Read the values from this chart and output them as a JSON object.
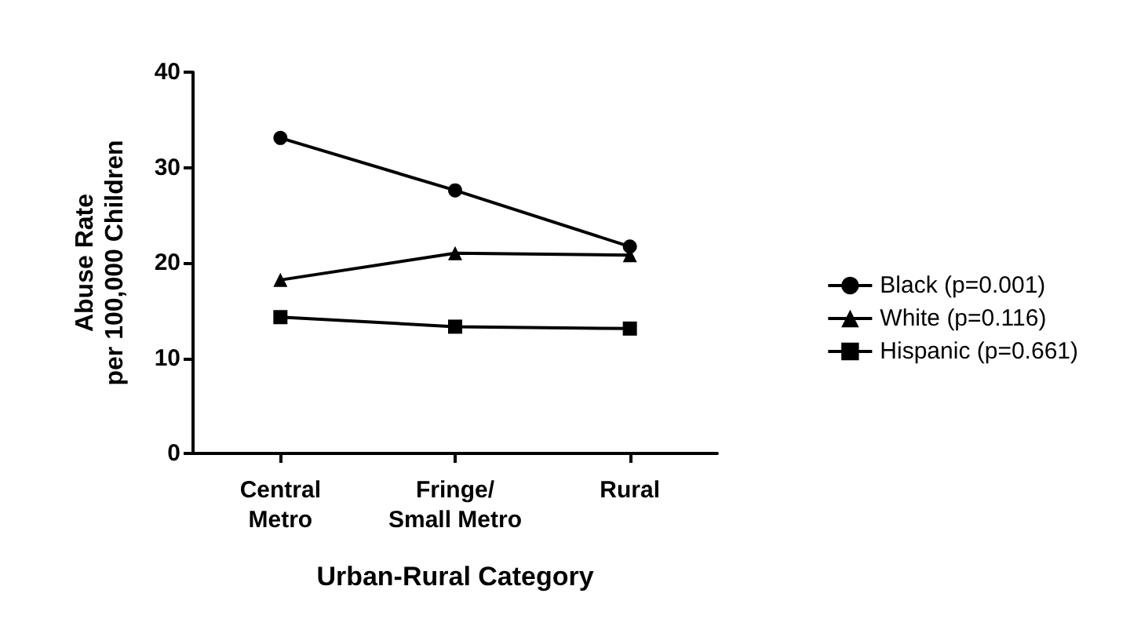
{
  "chart_data": {
    "type": "line",
    "xlabel": "Urban-Rural Category",
    "ylabel": "Abuse Rate\nper 100,000 Children",
    "categories": [
      "Central\nMetro",
      "Fringe/\nSmall Metro",
      "Rural"
    ],
    "series": [
      {
        "name": "Black (p=0.001)",
        "color": "#000000",
        "marker": "circle",
        "values": [
          33.1,
          27.6,
          21.7
        ]
      },
      {
        "name": "White (p=0.116)",
        "color": "#000000",
        "marker": "triangle",
        "values": [
          18.2,
          21.0,
          20.8
        ]
      },
      {
        "name": "Hispanic (p=0.661)",
        "color": "#000000",
        "marker": "square",
        "values": [
          14.3,
          13.3,
          13.1
        ]
      }
    ],
    "ylim": [
      0,
      40
    ],
    "yticks": [
      0,
      10,
      20,
      30,
      40
    ],
    "grid": false,
    "legend": "right",
    "line_style": "solid"
  }
}
